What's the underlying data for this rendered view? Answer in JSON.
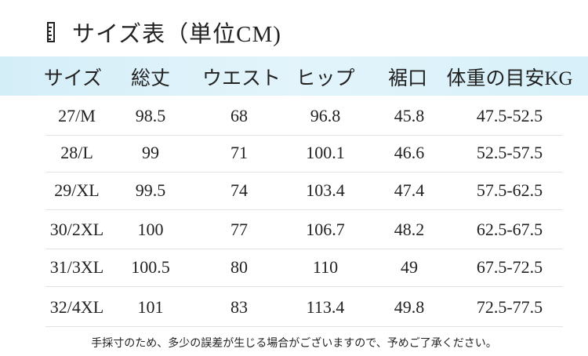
{
  "header": {
    "title": "サイズ表（単位CM)"
  },
  "table": {
    "columns": [
      "サイズ",
      "総丈",
      "ウエスト",
      "ヒップ",
      "裾口",
      "体重の目安KG"
    ],
    "rows": [
      [
        "27/M",
        "98.5",
        "68",
        "96.8",
        "45.8",
        "47.5-52.5"
      ],
      [
        "28/L",
        "99",
        "71",
        "100.1",
        "46.6",
        "52.5-57.5"
      ],
      [
        "29/XL",
        "99.5",
        "74",
        "103.4",
        "47.4",
        "57.5-62.5"
      ],
      [
        "30/2XL",
        "100",
        "77",
        "106.7",
        "48.2",
        "62.5-67.5"
      ],
      [
        "31/3XL",
        "100.5",
        "80",
        "110",
        "49",
        "67.5-72.5"
      ],
      [
        "32/4XL",
        "101",
        "83",
        "113.4",
        "49.8",
        "72.5-77.5"
      ]
    ]
  },
  "footer": {
    "note": "手採寸のため、多少の誤差が生じる場合がございますので、予めご了承ください。"
  }
}
